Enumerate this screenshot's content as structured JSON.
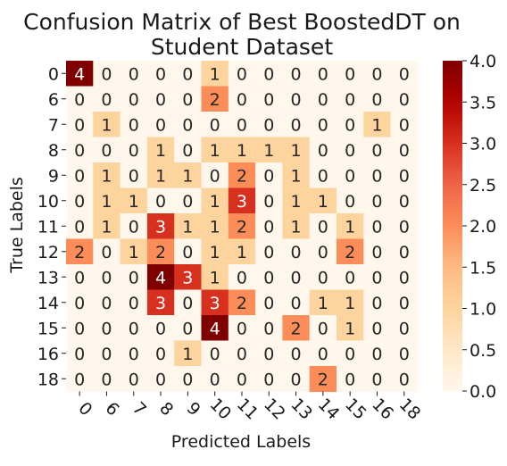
{
  "chart_data": {
    "type": "heatmap",
    "title": [
      "Confusion Matrix of Best BoostedDT on",
      "Student Dataset"
    ],
    "xlabel": "Predicted Labels",
    "ylabel": "True Labels",
    "x_categories": [
      "0",
      "6",
      "7",
      "8",
      "9",
      "10",
      "11",
      "12",
      "13",
      "14",
      "15",
      "16",
      "18"
    ],
    "y_categories": [
      "0",
      "6",
      "7",
      "8",
      "9",
      "10",
      "11",
      "12",
      "13",
      "14",
      "15",
      "16",
      "18"
    ],
    "values": [
      [
        4,
        0,
        0,
        0,
        0,
        1,
        0,
        0,
        0,
        0,
        0,
        0,
        0
      ],
      [
        0,
        0,
        0,
        0,
        0,
        2,
        0,
        0,
        0,
        0,
        0,
        0,
        0
      ],
      [
        0,
        1,
        0,
        0,
        0,
        0,
        0,
        0,
        0,
        0,
        0,
        1,
        0
      ],
      [
        0,
        0,
        0,
        1,
        0,
        1,
        1,
        1,
        1,
        0,
        0,
        0,
        0
      ],
      [
        0,
        1,
        0,
        1,
        1,
        0,
        2,
        0,
        1,
        0,
        0,
        0,
        0
      ],
      [
        0,
        1,
        1,
        0,
        0,
        1,
        3,
        0,
        1,
        1,
        0,
        0,
        0
      ],
      [
        0,
        1,
        0,
        3,
        1,
        1,
        2,
        0,
        1,
        0,
        1,
        0,
        0
      ],
      [
        2,
        0,
        1,
        2,
        0,
        1,
        1,
        0,
        0,
        0,
        2,
        0,
        0
      ],
      [
        0,
        0,
        0,
        4,
        3,
        1,
        0,
        0,
        0,
        0,
        0,
        0,
        0
      ],
      [
        0,
        0,
        0,
        3,
        0,
        3,
        2,
        0,
        0,
        1,
        1,
        0,
        0
      ],
      [
        0,
        0,
        0,
        0,
        0,
        4,
        0,
        0,
        2,
        0,
        1,
        0,
        0
      ],
      [
        0,
        0,
        0,
        0,
        1,
        0,
        0,
        0,
        0,
        0,
        0,
        0,
        0
      ],
      [
        0,
        0,
        0,
        0,
        0,
        0,
        0,
        0,
        0,
        2,
        0,
        0,
        0
      ]
    ],
    "colormap": "OrRd",
    "vmin": 0,
    "vmax": 4,
    "colorbar_ticks": [
      "0.0",
      "0.5",
      "1.0",
      "1.5",
      "2.0",
      "2.5",
      "3.0",
      "3.5",
      "4.0"
    ],
    "annotations": true,
    "grid": false,
    "colorbar_position": "right"
  }
}
